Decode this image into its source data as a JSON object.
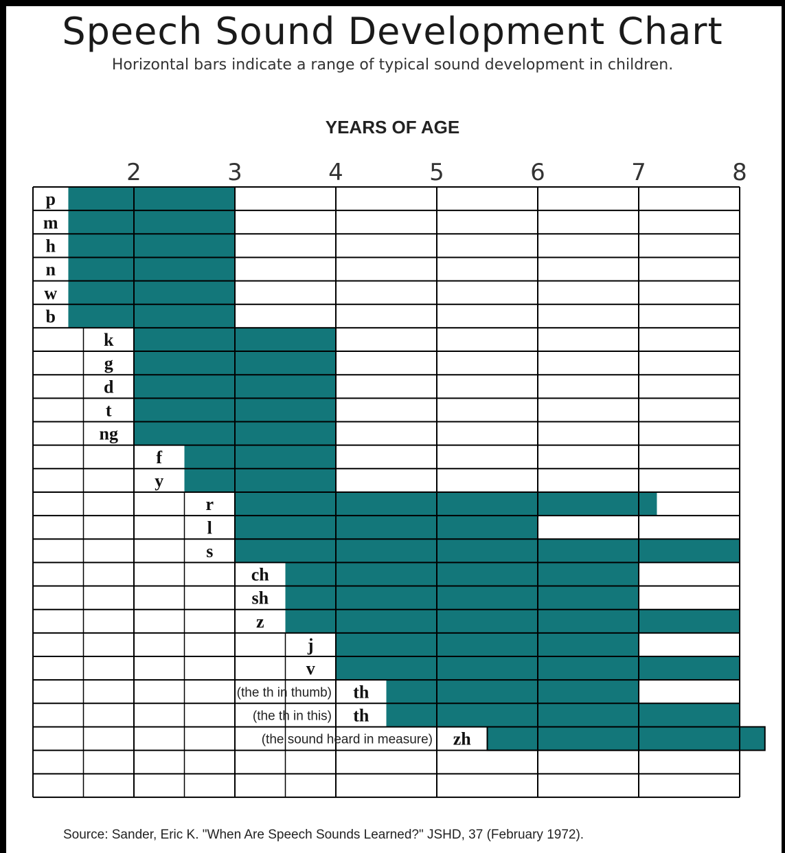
{
  "chart_data": {
    "type": "bar",
    "title": "Speech Sound Development Chart",
    "subtitle": "Horizontal bars indicate a range of typical sound development in children.",
    "xlabel": "YEARS OF AGE",
    "xticks": [
      2,
      3,
      4,
      5,
      6,
      7,
      8
    ],
    "xlim": [
      1.0,
      8.0
    ],
    "source": "Source:  Sander, Eric K. \"When Are Speech Sounds Learned?\" JSHD, 37  (February 1972).",
    "bar_color": "#13777a",
    "rows": [
      {
        "sound": "p",
        "label_start": 1.0,
        "start": 1.35,
        "end": 3.0
      },
      {
        "sound": "m",
        "label_start": 1.0,
        "start": 1.35,
        "end": 3.0
      },
      {
        "sound": "h",
        "label_start": 1.0,
        "start": 1.35,
        "end": 3.0
      },
      {
        "sound": "n",
        "label_start": 1.0,
        "start": 1.35,
        "end": 3.0
      },
      {
        "sound": "w",
        "label_start": 1.0,
        "start": 1.35,
        "end": 3.0
      },
      {
        "sound": "b",
        "label_start": 1.0,
        "start": 1.35,
        "end": 3.0
      },
      {
        "sound": "k",
        "label_start": 1.5,
        "start": 2.0,
        "end": 4.0
      },
      {
        "sound": "g",
        "label_start": 1.5,
        "start": 2.0,
        "end": 4.0
      },
      {
        "sound": "d",
        "label_start": 1.5,
        "start": 2.0,
        "end": 4.0
      },
      {
        "sound": "t",
        "label_start": 1.5,
        "start": 2.0,
        "end": 4.0
      },
      {
        "sound": "ng",
        "label_start": 1.5,
        "start": 2.0,
        "end": 4.0
      },
      {
        "sound": "f",
        "label_start": 2.0,
        "start": 2.5,
        "end": 4.0
      },
      {
        "sound": "y",
        "label_start": 2.0,
        "start": 2.5,
        "end": 4.0
      },
      {
        "sound": "r",
        "label_start": 2.5,
        "start": 3.0,
        "end": 7.18
      },
      {
        "sound": "l",
        "label_start": 2.5,
        "start": 3.0,
        "end": 6.0
      },
      {
        "sound": "s",
        "label_start": 2.5,
        "start": 3.0,
        "end": 8.0
      },
      {
        "sound": "ch",
        "label_start": 3.0,
        "start": 3.5,
        "end": 7.0
      },
      {
        "sound": "sh",
        "label_start": 3.0,
        "start": 3.5,
        "end": 7.0
      },
      {
        "sound": "z",
        "label_start": 3.0,
        "start": 3.5,
        "end": 8.0
      },
      {
        "sound": "j",
        "label_start": 3.5,
        "start": 4.0,
        "end": 7.0
      },
      {
        "sound": "v",
        "label_start": 3.5,
        "start": 4.0,
        "end": 8.0
      },
      {
        "sound": "th",
        "label_start": 4.0,
        "start": 4.5,
        "end": 7.0,
        "note": "(the th in thumb)"
      },
      {
        "sound": "th",
        "label_start": 4.0,
        "start": 4.5,
        "end": 8.0,
        "note": "(the th in this)"
      },
      {
        "sound": "zh",
        "label_start": 5.0,
        "start": 5.5,
        "end": 8.25,
        "note": "(the sound heard in measure)"
      },
      {
        "sound": "",
        "label_start": null,
        "start": null,
        "end": null
      },
      {
        "sound": "",
        "label_start": null,
        "start": null,
        "end": null
      }
    ]
  }
}
